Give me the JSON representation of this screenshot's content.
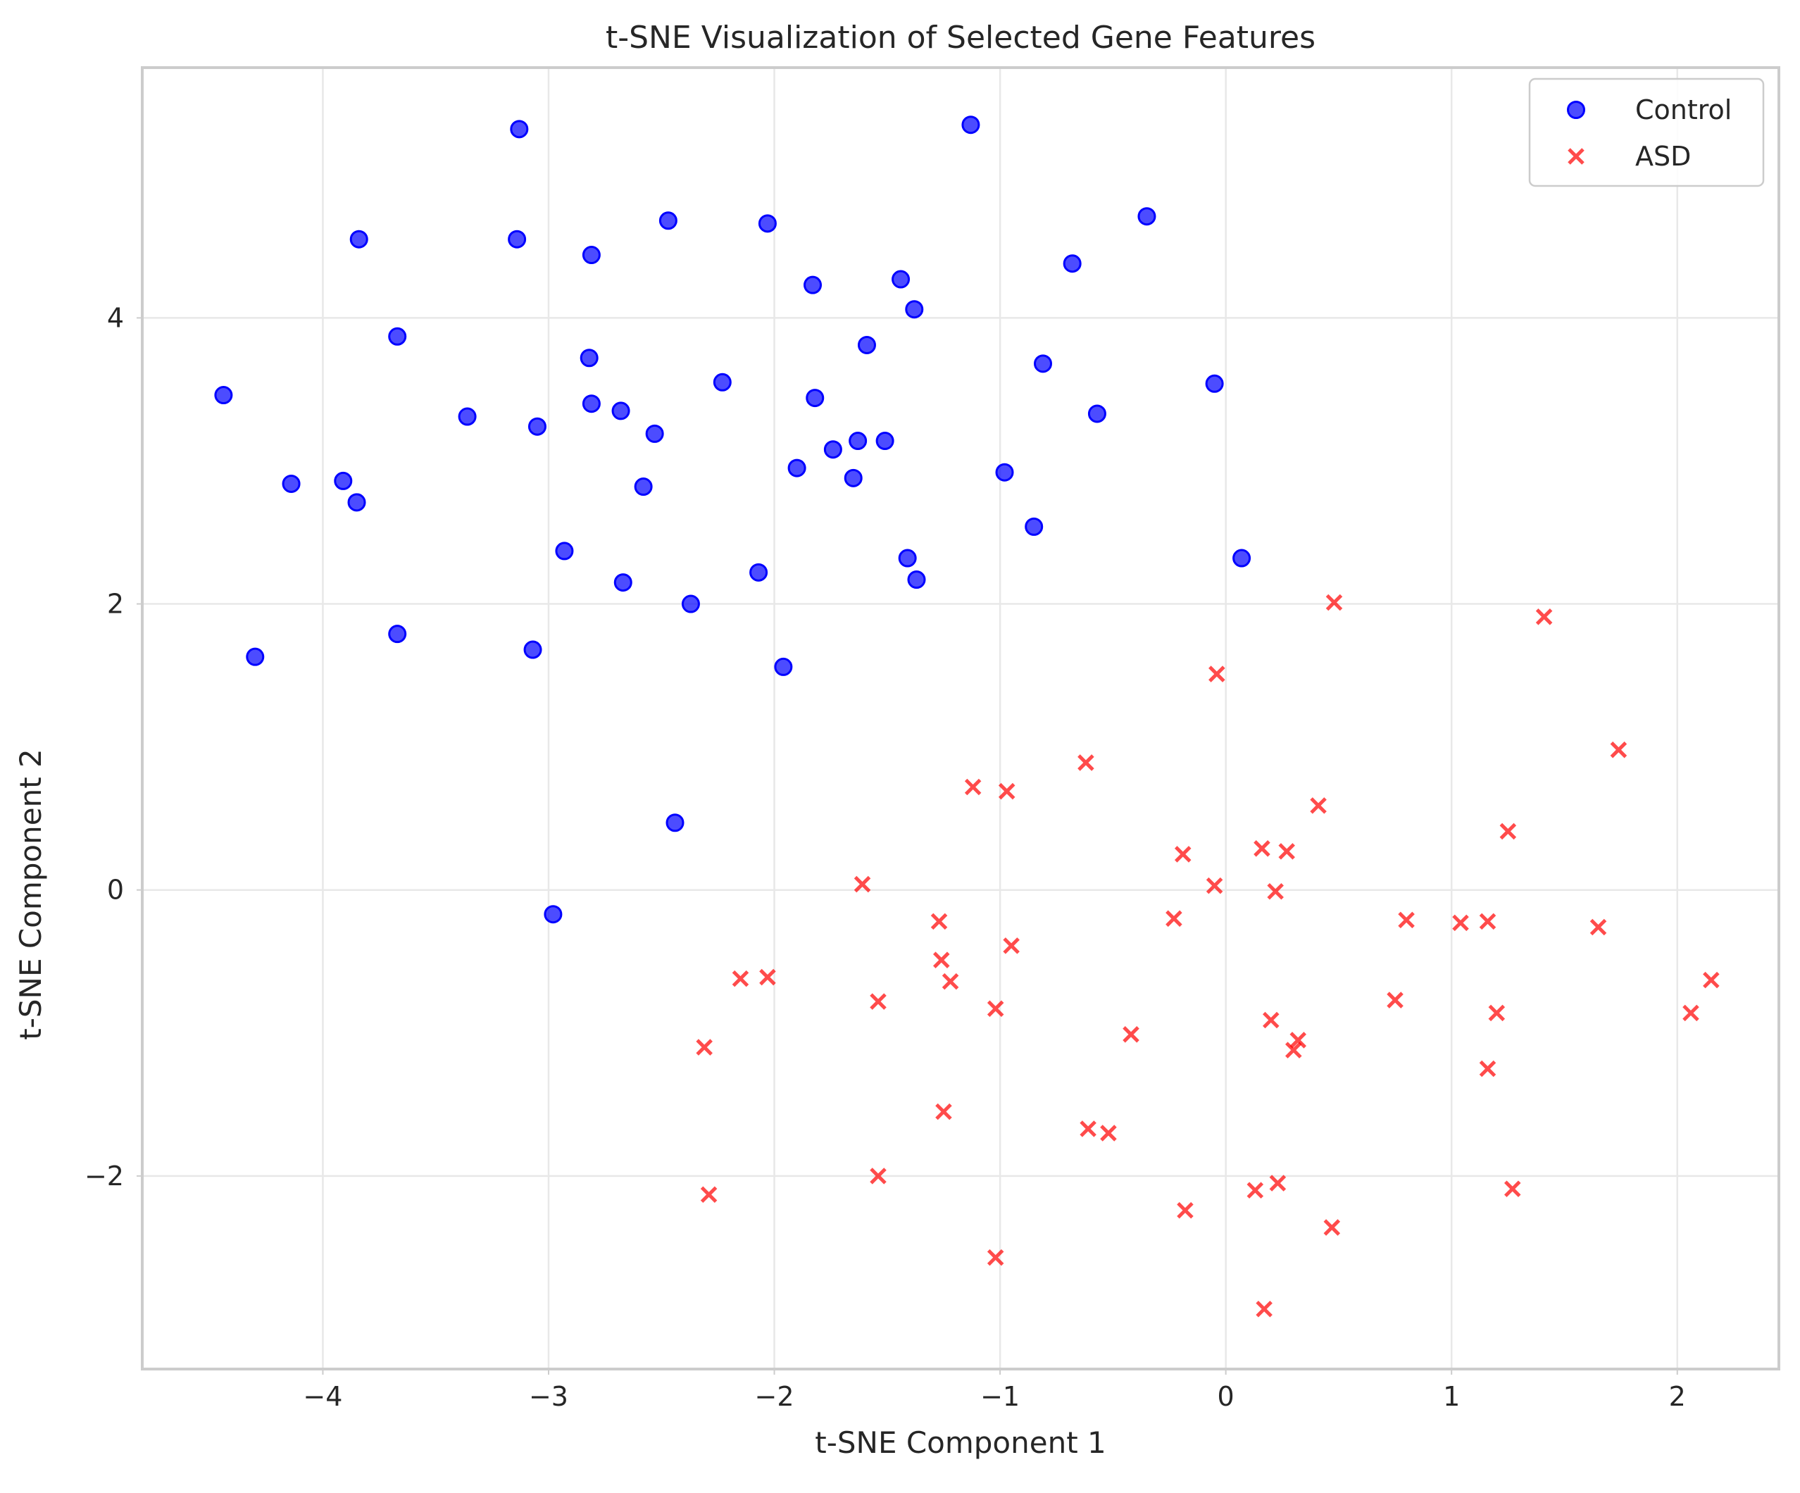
{
  "chart_data": {
    "type": "scatter",
    "title": "t-SNE Visualization of Selected Gene Features",
    "xlabel": "t-SNE Component 1",
    "ylabel": "t-SNE Component 2",
    "xlim": [
      -4.8,
      2.45
    ],
    "ylim": [
      -3.35,
      5.75
    ],
    "xticks": [
      -4,
      -3,
      -2,
      -1,
      0,
      1,
      2
    ],
    "yticks": [
      -2,
      0,
      2,
      4
    ],
    "xtick_labels": [
      "−4",
      "−3",
      "−2",
      "−1",
      "0",
      "1",
      "2"
    ],
    "ytick_labels": [
      "−2",
      "0",
      "2",
      "4"
    ],
    "grid": true,
    "legend_position": "top-right",
    "series": [
      {
        "name": "Control",
        "marker": "circle",
        "color": "#0000ff",
        "points": [
          [
            -3.13,
            5.32
          ],
          [
            -1.13,
            5.35
          ],
          [
            -3.84,
            4.55
          ],
          [
            -3.14,
            4.55
          ],
          [
            -2.47,
            4.68
          ],
          [
            -2.03,
            4.66
          ],
          [
            -0.35,
            4.71
          ],
          [
            -2.81,
            4.44
          ],
          [
            -0.68,
            4.38
          ],
          [
            -1.83,
            4.23
          ],
          [
            -1.44,
            4.27
          ],
          [
            -1.38,
            4.06
          ],
          [
            -3.67,
            3.87
          ],
          [
            -1.59,
            3.81
          ],
          [
            -2.82,
            3.72
          ],
          [
            -0.81,
            3.68
          ],
          [
            -2.23,
            3.55
          ],
          [
            -0.05,
            3.54
          ],
          [
            -4.44,
            3.46
          ],
          [
            -2.81,
            3.4
          ],
          [
            -1.82,
            3.44
          ],
          [
            -2.68,
            3.35
          ],
          [
            -0.57,
            3.33
          ],
          [
            -3.36,
            3.31
          ],
          [
            -3.05,
            3.24
          ],
          [
            -2.53,
            3.19
          ],
          [
            -1.63,
            3.14
          ],
          [
            -1.51,
            3.14
          ],
          [
            -1.74,
            3.08
          ],
          [
            -1.9,
            2.95
          ],
          [
            -3.91,
            2.86
          ],
          [
            -4.14,
            2.84
          ],
          [
            -1.65,
            2.88
          ],
          [
            -0.98,
            2.92
          ],
          [
            -2.58,
            2.82
          ],
          [
            -3.85,
            2.71
          ],
          [
            -0.85,
            2.54
          ],
          [
            -2.93,
            2.37
          ],
          [
            -1.41,
            2.32
          ],
          [
            0.07,
            2.32
          ],
          [
            -2.07,
            2.22
          ],
          [
            -1.37,
            2.17
          ],
          [
            -2.67,
            2.15
          ],
          [
            -2.37,
            2.0
          ],
          [
            -3.67,
            1.79
          ],
          [
            -4.3,
            1.63
          ],
          [
            -3.07,
            1.68
          ],
          [
            -1.96,
            1.56
          ],
          [
            -2.44,
            0.47
          ],
          [
            -2.98,
            -0.17
          ]
        ]
      },
      {
        "name": "ASD",
        "marker": "x",
        "color": "#ff0000",
        "points": [
          [
            0.48,
            2.01
          ],
          [
            1.41,
            1.91
          ],
          [
            -0.04,
            1.51
          ],
          [
            1.74,
            0.98
          ],
          [
            -0.62,
            0.89
          ],
          [
            -1.12,
            0.72
          ],
          [
            -0.97,
            0.69
          ],
          [
            0.41,
            0.59
          ],
          [
            1.25,
            0.41
          ],
          [
            0.16,
            0.29
          ],
          [
            0.27,
            0.27
          ],
          [
            -0.19,
            0.25
          ],
          [
            -1.61,
            0.04
          ],
          [
            -0.05,
            0.03
          ],
          [
            0.22,
            -0.01
          ],
          [
            -0.23,
            -0.2
          ],
          [
            0.8,
            -0.21
          ],
          [
            1.04,
            -0.23
          ],
          [
            1.16,
            -0.22
          ],
          [
            -1.27,
            -0.22
          ],
          [
            1.65,
            -0.26
          ],
          [
            -0.95,
            -0.39
          ],
          [
            -1.26,
            -0.49
          ],
          [
            -2.15,
            -0.62
          ],
          [
            -2.03,
            -0.61
          ],
          [
            -1.22,
            -0.64
          ],
          [
            2.15,
            -0.63
          ],
          [
            -1.54,
            -0.78
          ],
          [
            0.75,
            -0.77
          ],
          [
            -1.02,
            -0.83
          ],
          [
            1.2,
            -0.86
          ],
          [
            2.06,
            -0.86
          ],
          [
            0.2,
            -0.91
          ],
          [
            -0.42,
            -1.01
          ],
          [
            0.32,
            -1.05
          ],
          [
            0.3,
            -1.12
          ],
          [
            -2.31,
            -1.1
          ],
          [
            1.16,
            -1.25
          ],
          [
            -1.25,
            -1.55
          ],
          [
            -0.61,
            -1.67
          ],
          [
            -0.52,
            -1.7
          ],
          [
            -1.54,
            -2.0
          ],
          [
            0.23,
            -2.05
          ],
          [
            0.13,
            -2.1
          ],
          [
            1.27,
            -2.09
          ],
          [
            -2.29,
            -2.13
          ],
          [
            -0.18,
            -2.24
          ],
          [
            0.47,
            -2.36
          ],
          [
            -1.02,
            -2.57
          ],
          [
            0.17,
            -2.93
          ]
        ]
      }
    ]
  }
}
